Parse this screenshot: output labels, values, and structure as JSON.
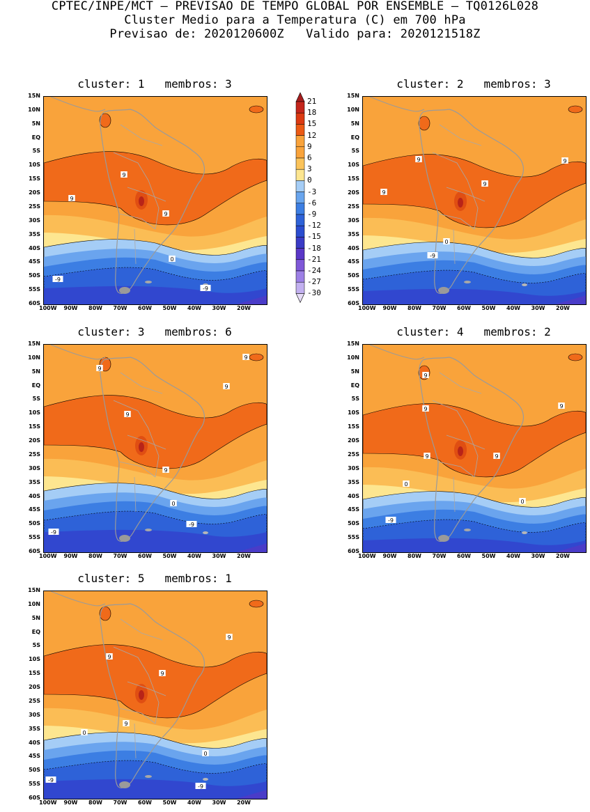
{
  "header": {
    "line1": "CPTEC/INPE/MCT – PREVISAO DE TEMPO GLOBAL POR ENSEMBLE – TQ0126L028",
    "line2": "Cluster Medio para a Temperatura (C) em 700 hPa",
    "line3": "Previsao de: 2020120600Z   Valido para: 2020121518Z"
  },
  "axes": {
    "lat_labels": [
      "15N",
      "10N",
      "5N",
      "EQ",
      "5S",
      "10S",
      "15S",
      "20S",
      "25S",
      "30S",
      "35S",
      "40S",
      "45S",
      "50S",
      "55S",
      "60S"
    ],
    "lon_labels": [
      "100W",
      "90W",
      "80W",
      "70W",
      "60W",
      "50W",
      "40W",
      "30W",
      "20W"
    ]
  },
  "colorbar": {
    "labels": [
      "21",
      "18",
      "15",
      "12",
      "9",
      "6",
      "3",
      "0",
      "-3",
      "-6",
      "-9",
      "-12",
      "-15",
      "-18",
      "-21",
      "-24",
      "-27",
      "-30"
    ],
    "colors": [
      "#a51e1e",
      "#c4261c",
      "#dc3a12",
      "#ec5a14",
      "#f9a33b",
      "#f9a33b",
      "#fbc35a",
      "#fde690",
      "#a5cdf6",
      "#69a5ee",
      "#3c7ee3",
      "#2e62d8",
      "#2b4dd0",
      "#3a3bc6",
      "#5a37c7",
      "#7f58d8",
      "#9d80e6",
      "#c2b0f0"
    ],
    "band_colors": {
      "above_12": "#e04e12",
      "9_to_12": "#f06a1a",
      "6_to_9": "#f9a33b",
      "3_to_6": "#fbbd55",
      "0_to_3": "#fde690",
      "m3_to_0": "#a5cdf6",
      "m6_to_m3": "#6aa4ee",
      "m9_to_m6": "#3c7ee3",
      "m12_to_m9": "#2e62d8",
      "m15_to_m12": "#3147cf",
      "m18_to_m15": "#4a3cc8"
    }
  },
  "panels": [
    {
      "title": "cluster: 1   membros: 3",
      "labels": [
        "9",
        "9",
        "9",
        "0",
        "-9",
        "-9"
      ]
    },
    {
      "title": "cluster: 2   membros: 3",
      "labels": [
        "9",
        "9",
        "9",
        "9",
        "0",
        "-9"
      ]
    },
    {
      "title": "cluster: 3   membros: 6",
      "labels": [
        "9",
        "9",
        "9",
        "9",
        "9",
        "0",
        "-9",
        "-9"
      ]
    },
    {
      "title": "cluster: 4   membros: 2",
      "labels": [
        "9",
        "9",
        "9",
        "9",
        "9",
        "0",
        "0",
        "-9"
      ]
    },
    {
      "title": "cluster: 5   membros: 1",
      "labels": [
        "9",
        "9",
        "9",
        "9",
        "0",
        "0",
        "-9",
        "-9"
      ]
    }
  ]
}
